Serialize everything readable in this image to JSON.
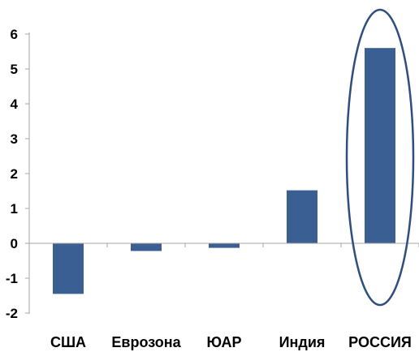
{
  "chart_data": {
    "type": "bar",
    "categories": [
      "США",
      "Еврозона",
      "ЮАР",
      "Индия",
      "РОССИЯ"
    ],
    "values": [
      -1.45,
      -0.22,
      -0.13,
      1.52,
      5.6
    ],
    "ylim": [
      -2,
      6
    ],
    "yticks": [
      "6",
      "5",
      "4",
      "3",
      "2",
      "1",
      "0",
      "-1",
      "-2"
    ],
    "ytick_values": [
      6,
      5,
      4,
      3,
      2,
      1,
      0,
      -1,
      -2
    ],
    "grid": false,
    "highlight_category": "РОССИЯ",
    "colors": {
      "bar": "#3A5F93",
      "highlight_ellipse": "#2E4F7E",
      "axis": "#A6A6A6",
      "text": "#000000"
    }
  }
}
